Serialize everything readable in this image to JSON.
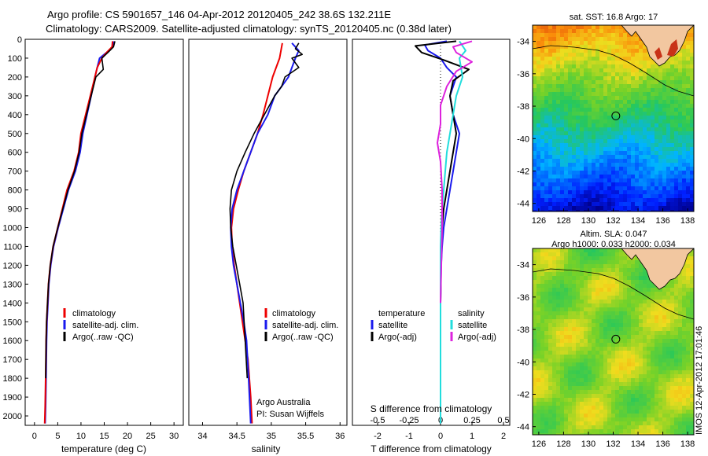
{
  "header": {
    "line1": "Argo profile: CS 5901657_146 04-Apr-2012 20120405_242 38.6S 132.211E",
    "line2": "Climatology: CARS2009. Satellite-adjusted climatology: synTS_20120405.nc (0.38d later)"
  },
  "colors": {
    "climatology": "#ee0000",
    "satellite": "#1a1aee",
    "argo": "#000000",
    "salinity_satellite": "#22dddd",
    "salinity_argo": "#dd22dd"
  },
  "chart_data": [
    {
      "type": "line",
      "xlabel": "temperature (deg C)",
      "ylabel": "",
      "xlim": [
        -2,
        32
      ],
      "ylim": [
        2050,
        0
      ],
      "xticks": [
        "0",
        "5",
        "10",
        "15",
        "20",
        "25",
        "30"
      ],
      "yticks": [
        "0",
        "100",
        "200",
        "300",
        "400",
        "500",
        "600",
        "700",
        "800",
        "900",
        "1000",
        "1100",
        "1200",
        "1300",
        "1400",
        "1500",
        "1600",
        "1700",
        "1800",
        "1900",
        "2000"
      ],
      "legend": [
        "climatology",
        "satellite-adj. clim.",
        "Argo(..raw -QC)"
      ],
      "legend_position": "lower-center",
      "series": [
        {
          "name": "climatology",
          "x": [
            16.8,
            16.7,
            15.5,
            14.5,
            13.5,
            13.0,
            12.0,
            11.0,
            10.0,
            9.5,
            8.5,
            7.0,
            6.0,
            5.0,
            4.0,
            3.4,
            3.0,
            2.8,
            2.6,
            2.5,
            2.4,
            2.3,
            2.2
          ],
          "y": [
            10,
            40,
            70,
            100,
            150,
            200,
            300,
            400,
            500,
            600,
            700,
            800,
            900,
            1000,
            1100,
            1200,
            1300,
            1400,
            1500,
            1600,
            1800,
            1950,
            2040
          ]
        },
        {
          "name": "satellite-adj. clim.",
          "x": [
            17.0,
            16.9,
            16.0,
            14.0,
            13.5,
            13.0,
            12.2,
            11.3,
            10.4,
            9.8,
            8.8,
            7.3,
            6.2,
            5.1,
            4.1,
            3.5,
            3.1,
            2.9,
            2.7,
            2.6,
            2.5,
            2.4,
            2.3
          ],
          "y": [
            10,
            40,
            60,
            100,
            150,
            200,
            300,
            400,
            500,
            600,
            700,
            800,
            900,
            1000,
            1100,
            1200,
            1300,
            1400,
            1500,
            1600,
            1800,
            1950,
            2040
          ]
        },
        {
          "name": "Argo(..raw -QC)",
          "x": [
            17.3,
            17.0,
            16.0,
            14.5,
            14.8,
            13.2,
            12.2,
            11.2,
            10.2,
            9.6,
            8.6,
            7.2,
            6.1,
            5.0,
            4.0,
            3.4,
            3.0,
            2.8,
            2.6,
            2.5,
            2.4
          ],
          "y": [
            10,
            40,
            65,
            100,
            160,
            200,
            300,
            400,
            500,
            600,
            700,
            800,
            900,
            1000,
            1100,
            1200,
            1300,
            1400,
            1500,
            1600,
            1800
          ]
        }
      ]
    },
    {
      "type": "line",
      "xlabel": "salinity",
      "ylabel": "",
      "xlim": [
        33.8,
        36.1
      ],
      "ylim": [
        2050,
        0
      ],
      "xticks": [
        "34",
        "34.5",
        "35",
        "35.5",
        "36"
      ],
      "legend": [
        "climatology",
        "satellite-adj. clim.",
        "Argo(..raw -QC)"
      ],
      "legend_position": "lower-center",
      "annotation": [
        "Argo Australia",
        "PI: Susan Wijffels"
      ],
      "series": [
        {
          "name": "climatology",
          "x": [
            35.16,
            35.12,
            35.02,
            34.95,
            34.88,
            34.8,
            34.7,
            34.6,
            34.52,
            34.45,
            34.42,
            34.43,
            34.46,
            34.5,
            34.54,
            34.58,
            34.62,
            34.66,
            34.7,
            34.72
          ],
          "y": [
            20,
            100,
            200,
            300,
            400,
            500,
            600,
            700,
            800,
            900,
            1000,
            1100,
            1200,
            1300,
            1400,
            1500,
            1600,
            1700,
            1900,
            2040
          ]
        },
        {
          "name": "satellite-adj. clim.",
          "x": [
            35.3,
            35.4,
            35.35,
            35.3,
            35.25,
            35.15,
            35.05,
            34.95,
            34.8,
            34.7,
            34.6,
            34.5,
            34.43,
            34.41,
            34.42,
            34.45,
            34.5,
            34.55,
            34.6,
            34.64,
            34.67,
            34.7
          ],
          "y": [
            20,
            60,
            100,
            150,
            200,
            250,
            300,
            400,
            500,
            600,
            700,
            800,
            900,
            1000,
            1100,
            1200,
            1300,
            1400,
            1500,
            1600,
            1800,
            2040
          ]
        },
        {
          "name": "Argo(..raw -QC)",
          "x": [
            35.4,
            35.35,
            35.45,
            35.3,
            35.4,
            35.2,
            35.15,
            35.05,
            34.9,
            34.75,
            34.62,
            34.5,
            34.42,
            34.4,
            34.41,
            34.44,
            34.49,
            34.54,
            34.59,
            34.65
          ],
          "y": [
            20,
            50,
            80,
            100,
            150,
            200,
            250,
            300,
            400,
            500,
            600,
            700,
            800,
            900,
            1000,
            1100,
            1200,
            1300,
            1400,
            1800
          ]
        }
      ]
    },
    {
      "type": "line",
      "xlabel": "T difference from climatology",
      "x2label": "S difference from climatology",
      "xlim": [
        -2.8,
        2.2
      ],
      "ylim": [
        2050,
        0
      ],
      "xticks": [
        "-2",
        "-1",
        "0",
        "1",
        "2"
      ],
      "x2ticks": [
        "-0.5",
        "-0.25",
        "0",
        "0.25",
        "0.5"
      ],
      "legend": [
        "temperature",
        "satellite",
        "Argo(-adj)",
        "salinity",
        "satellite",
        "Argo(-adj)"
      ],
      "legend_position": "lower-center",
      "series": [
        {
          "name": "satellite",
          "x": [
            0.2,
            -0.5,
            -0.4,
            0.0,
            0.2,
            0.5,
            0.3,
            0.4,
            0.6,
            0.5,
            0.4,
            0.3,
            0.2,
            0.1,
            0.05,
            0.02,
            0.0,
            0.0
          ],
          "y": [
            10,
            30,
            60,
            100,
            150,
            200,
            300,
            400,
            500,
            600,
            700,
            800,
            900,
            1000,
            1100,
            1200,
            1400,
            2040
          ]
        },
        {
          "name": "Argo(-adj)",
          "x": [
            0.5,
            -0.8,
            -0.6,
            0.1,
            0.9,
            0.4,
            0.3,
            0.4,
            0.5,
            0.4,
            0.3,
            0.2,
            0.1,
            0.05,
            0.02,
            0.0
          ],
          "y": [
            10,
            35,
            70,
            110,
            160,
            220,
            300,
            400,
            500,
            600,
            700,
            800,
            900,
            1000,
            1100,
            1400
          ]
        },
        {
          "name": "satellite",
          "x": [
            0.6,
            0.8,
            0.6,
            0.7,
            0.5,
            0.4,
            0.3,
            0.2,
            0.15,
            0.1,
            0.05,
            0.02,
            0.0,
            0.0
          ],
          "y": [
            10,
            60,
            100,
            200,
            300,
            400,
            500,
            600,
            700,
            800,
            900,
            1000,
            1100,
            2040
          ]
        },
        {
          "name": "Argo(-adj)",
          "x": [
            1.0,
            0.4,
            0.5,
            1.0,
            0.5,
            0.2,
            0.0,
            0.0,
            -0.1,
            0.0,
            0.05,
            0.05,
            0.0
          ],
          "y": [
            10,
            40,
            70,
            120,
            170,
            250,
            350,
            450,
            550,
            650,
            800,
            1000,
            1400
          ]
        }
      ]
    },
    {
      "type": "heatmap",
      "title": "sat. SST: 16.8 Argo: 17",
      "xticks": [
        "126",
        "128",
        "130",
        "132",
        "134",
        "136",
        "138"
      ],
      "yticks": [
        "-34",
        "-36",
        "-38",
        "-40",
        "-42",
        "-44"
      ],
      "xlim": [
        125.5,
        138.5
      ],
      "ylim": [
        -33,
        -44.5
      ],
      "marker": {
        "lon": 132.211,
        "lat": -38.6
      }
    },
    {
      "type": "heatmap",
      "title": "Altim. SLA: 0.047",
      "subtitle": "Argo h1000: 0.033 h2000: 0.034",
      "xticks": [
        "126",
        "128",
        "130",
        "132",
        "134",
        "136",
        "138"
      ],
      "yticks": [
        "-34",
        "-36",
        "-38",
        "-40",
        "-42",
        "-44"
      ],
      "xlim": [
        125.5,
        138.5
      ],
      "ylim": [
        -33,
        -44.5
      ],
      "marker": {
        "lon": 132.211,
        "lat": -38.6
      }
    }
  ],
  "side_label": "IMOS 12-Apr-2012 17:01:46"
}
